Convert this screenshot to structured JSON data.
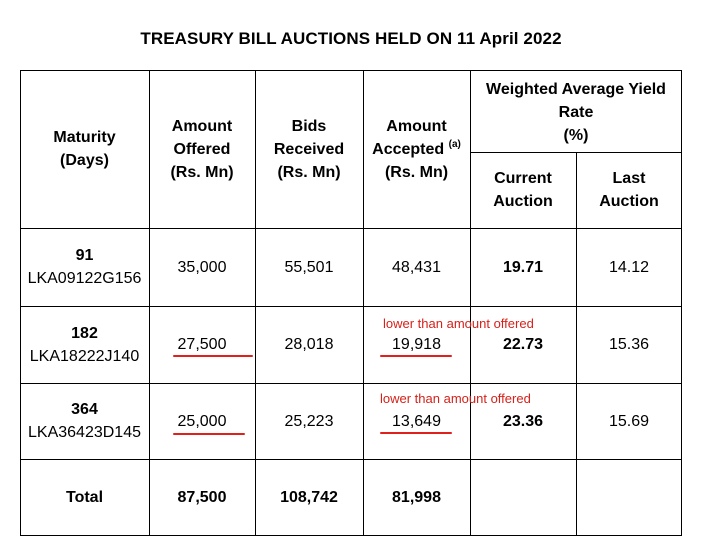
{
  "title": "TREASURY BILL AUCTIONS HELD ON 11 April 2022",
  "headers": {
    "maturity": [
      "Maturity",
      "(Days)"
    ],
    "amount_offered": [
      "Amount",
      "Offered",
      "(Rs. Mn)"
    ],
    "bids_received": [
      "Bids",
      "Received",
      "(Rs. Mn)"
    ],
    "amount_accepted": {
      "line1": "Amount",
      "line2": "Accepted",
      "sup": "(a)",
      "line3": "(Rs. Mn)"
    },
    "yield_group": [
      "Weighted Average Yield",
      "Rate",
      "(%)"
    ],
    "current_auction": [
      "Current",
      "Auction"
    ],
    "last_auction": [
      "Last",
      "Auction"
    ]
  },
  "rows": [
    {
      "days": "91",
      "code": "LKA09122G156",
      "offered": "35,000",
      "bids": "55,501",
      "accepted": "48,431",
      "current": "19.71",
      "last": "14.12",
      "note": ""
    },
    {
      "days": "182",
      "code": "LKA18222J140",
      "offered": "27,500",
      "bids": "28,018",
      "accepted": "19,918",
      "current": "22.73",
      "last": "15.36",
      "note": "lower than amount offered"
    },
    {
      "days": "364",
      "code": "LKA36423D145",
      "offered": "25,000",
      "bids": "25,223",
      "accepted": "13,649",
      "current": "23.36",
      "last": "15.69",
      "note": "lower than amount offered"
    }
  ],
  "total": {
    "label": "Total",
    "offered": "87,500",
    "bids": "108,742",
    "accepted": "81,998"
  },
  "annotation_color": "#e0201a"
}
